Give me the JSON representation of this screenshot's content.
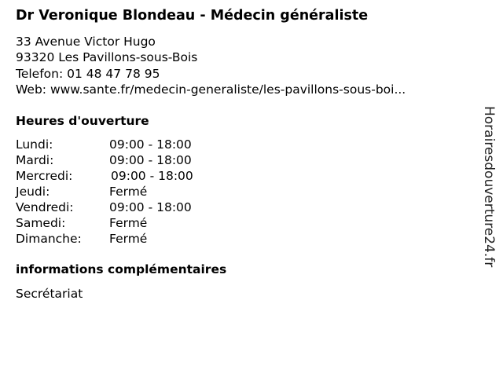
{
  "title": "Dr Veronique Blondeau - Médecin généraliste",
  "address": {
    "street": "33 Avenue Victor Hugo",
    "city": "93320 Les Pavillons-sous-Bois",
    "phone": "Telefon: 01 48 47 78 95",
    "web": "Web: www.sante.fr/medecin-generaliste/les-pavillons-sous-boi..."
  },
  "hours_heading": "Heures d'ouverture",
  "hours": [
    {
      "day": "Lundi:",
      "time": "09:00 - 18:00"
    },
    {
      "day": "Mardi:",
      "time": "09:00 - 18:00"
    },
    {
      "day": "Mercredi:",
      "time": "09:00 - 18:00"
    },
    {
      "day": "Jeudi:",
      "time": "Fermé"
    },
    {
      "day": "Vendredi:",
      "time": "09:00 - 18:00"
    },
    {
      "day": "Samedi:",
      "time": "Fermé"
    },
    {
      "day": "Dimanche:",
      "time": "Fermé"
    }
  ],
  "info_heading": "informations complémentaires",
  "info_text": "Secrétariat",
  "watermark": "Horairesdouverture24.fr"
}
